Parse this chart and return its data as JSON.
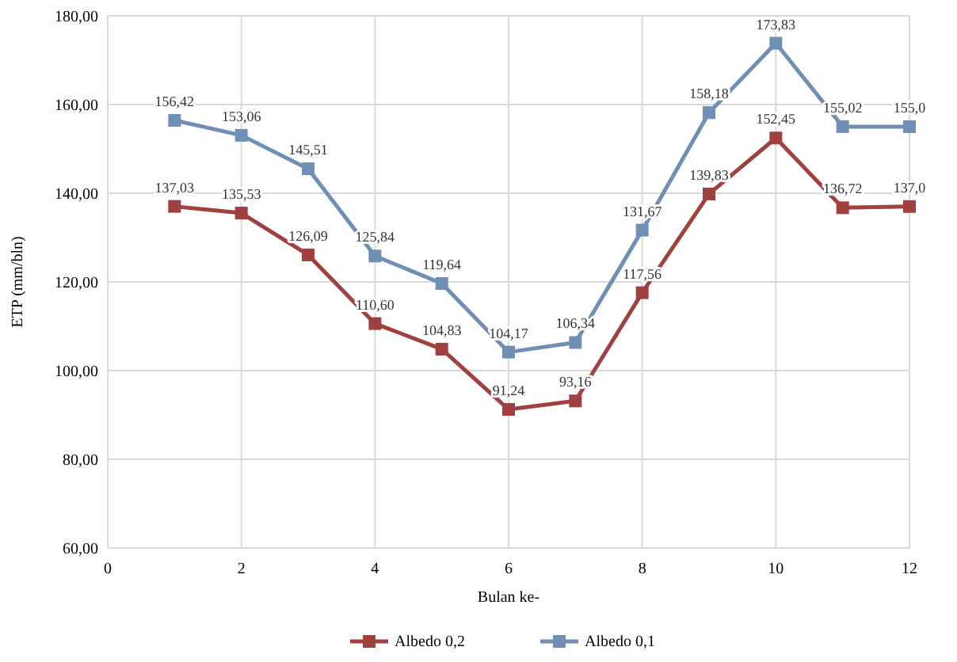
{
  "chart_data": {
    "type": "line",
    "xlabel": "Bulan ke-",
    "ylabel": "ETP (mm/bln)",
    "x": [
      1,
      2,
      3,
      4,
      5,
      6,
      7,
      8,
      9,
      10,
      11,
      12
    ],
    "xlim": [
      0,
      12
    ],
    "xticks": [
      0,
      2,
      4,
      6,
      8,
      10,
      12
    ],
    "ylim": [
      60,
      180
    ],
    "yticks": [
      {
        "value": 60,
        "label": "60,00"
      },
      {
        "value": 80,
        "label": "80,00"
      },
      {
        "value": 100,
        "label": "100,00"
      },
      {
        "value": 120,
        "label": "120,00"
      },
      {
        "value": 140,
        "label": "140,00"
      },
      {
        "value": 160,
        "label": "160,00"
      },
      {
        "value": 180,
        "label": "180,00"
      }
    ],
    "grid": true,
    "legend": "bottom",
    "marker": "square",
    "line_style": "solid",
    "series": [
      {
        "name": "Albedo 0,2",
        "color": "#a0403f",
        "values": [
          137.03,
          135.53,
          126.09,
          110.6,
          104.83,
          91.24,
          93.16,
          117.56,
          139.83,
          152.45,
          136.72,
          137.0
        ],
        "value_labels": [
          "137,03",
          "135,53",
          "126,09",
          "110,60",
          "104,83",
          "91,24",
          "93,16",
          "117,56",
          "139,83",
          "152,45",
          "136,72",
          "137,0"
        ]
      },
      {
        "name": "Albedo 0,1",
        "color": "#6f8fb5",
        "values": [
          156.42,
          153.06,
          145.51,
          125.84,
          119.64,
          104.17,
          106.34,
          131.67,
          158.18,
          173.83,
          155.02,
          155.0
        ],
        "value_labels": [
          "156,42",
          "153,06",
          "145,51",
          "125,84",
          "119,64",
          "104,17",
          "106,34",
          "131,67",
          "158,18",
          "173,83",
          "155,02",
          "155,0"
        ]
      }
    ]
  }
}
